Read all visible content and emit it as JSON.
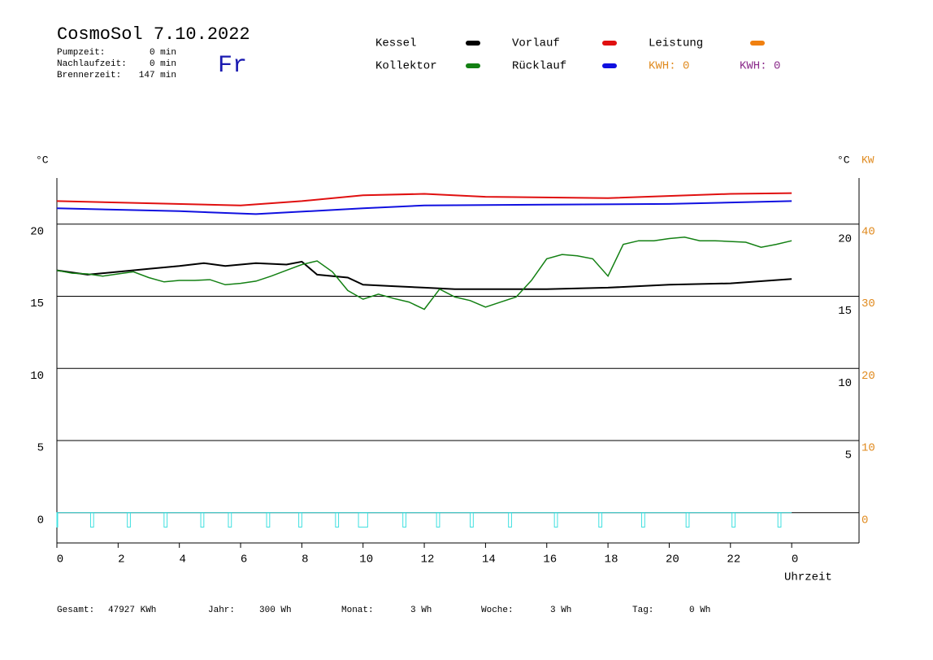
{
  "header": {
    "title": "CosmoSol 7.10.2022",
    "day": "Fr",
    "stats": [
      {
        "label": "Pumpzeit:",
        "value": "0 min"
      },
      {
        "label": "Nachlaufzeit:",
        "value": "0 min"
      },
      {
        "label": "Brennerzeit:",
        "value": "147 min"
      }
    ]
  },
  "legend_extra": [
    {
      "name": "Leistung",
      "color": "#f08010"
    },
    {
      "label": "KWH: 0",
      "color": "#e08a1e"
    },
    {
      "label": "KWH: 0",
      "color": "#8a2a8a"
    }
  ],
  "footer": [
    {
      "label": "Gesamt:",
      "value": "47927 KWh"
    },
    {
      "label": "Jahr:",
      "value": "300 Wh"
    },
    {
      "label": "Monat:",
      "value": "3 Wh"
    },
    {
      "label": "Woche:",
      "value": "3 Wh"
    },
    {
      "label": "Tag:",
      "value": "0 Wh"
    }
  ],
  "chart_data": {
    "type": "line",
    "y_unit": "°C",
    "y2_unit_left": "°C",
    "y2_unit": "KW",
    "xlabel": "Uhrzeit",
    "xlim": [
      0,
      26.2
    ],
    "xticks": [
      0,
      2,
      4,
      6,
      8,
      10,
      12,
      14,
      16,
      18,
      20,
      22,
      {
        "value": 24,
        "label": "0"
      }
    ],
    "ylim": [
      -2.1,
      23.2
    ],
    "yticks": [
      0,
      5,
      10,
      15,
      20
    ],
    "right_ticks": [
      20,
      15,
      10,
      5
    ],
    "y2lim": [
      -4.2,
      46.4
    ],
    "y2ticks": [
      0,
      10,
      20,
      30,
      40
    ],
    "y2color": "#e08a1e",
    "grid": true,
    "series": [
      {
        "name": "Kessel",
        "color": "#000000",
        "x": [
          0,
          1,
          2,
          3,
          4,
          4.8,
          5.5,
          6.5,
          7.5,
          8,
          8.5,
          9.5,
          10,
          11,
          12,
          13,
          14,
          16,
          18,
          20,
          22,
          24
        ],
        "values": [
          16.8,
          16.5,
          16.7,
          16.9,
          17.1,
          17.3,
          17.1,
          17.3,
          17.2,
          17.4,
          16.5,
          16.3,
          15.8,
          15.7,
          15.6,
          15.5,
          15.5,
          15.5,
          15.6,
          15.8,
          15.9,
          16.2
        ]
      },
      {
        "name": "Kollektor",
        "color": "#138013",
        "x": [
          0,
          0.5,
          1,
          1.5,
          2,
          2.5,
          3,
          3.5,
          4,
          4.5,
          5,
          5.5,
          6,
          6.5,
          7,
          7.5,
          8,
          8.5,
          9,
          9.5,
          10,
          10.5,
          11,
          11.5,
          12,
          12.5,
          13,
          13.5,
          14,
          14.5,
          15,
          15.5,
          16,
          16.5,
          17,
          17.5,
          18,
          18.5,
          19,
          19.5,
          20,
          20.5,
          21,
          21.5,
          22,
          22.5,
          23,
          23.5,
          24
        ],
        "values": [
          16.8,
          16.6,
          16.55,
          16.4,
          16.55,
          16.7,
          16.3,
          16.0,
          16.1,
          16.1,
          16.15,
          15.8,
          15.9,
          16.05,
          16.4,
          16.8,
          17.2,
          17.45,
          16.7,
          15.4,
          14.8,
          15.15,
          14.85,
          14.6,
          14.1,
          15.5,
          14.95,
          14.7,
          14.25,
          14.6,
          14.95,
          16.1,
          17.6,
          17.9,
          17.8,
          17.6,
          16.4,
          18.6,
          18.85,
          18.85,
          19.0,
          19.1,
          18.85,
          18.85,
          18.8,
          18.75,
          18.4,
          18.6,
          18.85
        ]
      },
      {
        "name": "Vorlauf",
        "color": "#e01010",
        "x": [
          0,
          6,
          8,
          10,
          12,
          14,
          18,
          22,
          24
        ],
        "values": [
          21.6,
          21.3,
          21.6,
          22.0,
          22.1,
          21.9,
          21.8,
          22.1,
          22.15
        ]
      },
      {
        "name": "Rücklauf",
        "color": "#1010e0",
        "x": [
          0,
          4,
          6.5,
          10,
          12,
          16,
          20,
          24
        ],
        "values": [
          21.1,
          20.9,
          20.7,
          21.1,
          21.3,
          21.35,
          21.4,
          21.6
        ]
      }
    ],
    "pump": {
      "color": "#40e0e0",
      "low": -1.0,
      "intervals": [
        [
          0,
          0.02
        ],
        [
          1.1,
          1.2
        ],
        [
          2.3,
          2.4
        ],
        [
          3.5,
          3.6
        ],
        [
          4.7,
          4.8
        ],
        [
          5.6,
          5.7
        ],
        [
          6.85,
          6.95
        ],
        [
          7.9,
          8.0
        ],
        [
          9.1,
          9.2
        ],
        [
          9.85,
          10.15
        ],
        [
          11.3,
          11.4
        ],
        [
          12.4,
          12.5
        ],
        [
          13.5,
          13.6
        ],
        [
          14.75,
          14.85
        ],
        [
          16.25,
          16.35
        ],
        [
          17.7,
          17.8
        ],
        [
          19.1,
          19.2
        ],
        [
          20.55,
          20.65
        ],
        [
          22.05,
          22.15
        ],
        [
          23.55,
          23.65
        ]
      ]
    }
  }
}
